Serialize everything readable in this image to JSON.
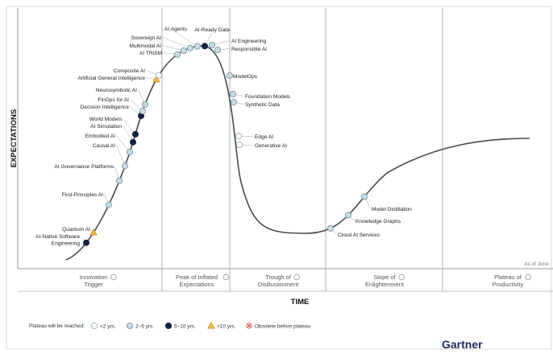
{
  "chart_data": {
    "type": "line",
    "title": "",
    "xlabel": "TIME",
    "ylabel": "EXPECTATIONS",
    "as_of": "As of June",
    "brand": "Gartner",
    "phases": [
      {
        "label_lines": [
          "Innovation",
          "Trigger"
        ]
      },
      {
        "label_lines": [
          "Peak of Inflated",
          "Expectations"
        ]
      },
      {
        "label_lines": [
          "Trough of",
          "Disillusionment"
        ]
      },
      {
        "label_lines": [
          "Slope of",
          "Enlightenment"
        ]
      },
      {
        "label_lines": [
          "Plateau of",
          "Productivity"
        ]
      }
    ],
    "legend": {
      "title": "Plateau will be reached:",
      "items": [
        {
          "label": "<2 yrs.",
          "marker": "<2"
        },
        {
          "label": "2–5 yrs.",
          "marker": "2-5"
        },
        {
          "label": "5–10 yrs.",
          "marker": "5-10"
        },
        {
          "label": ">10 yrs.",
          "marker": ">10"
        },
        {
          "label": "Obsolete before plateau",
          "marker": "obsolete"
        }
      ]
    },
    "markers": {
      "<2": {
        "fill": "#ffffff",
        "stroke": "#8fa6b2",
        "shape": "circle"
      },
      "2-5": {
        "fill": "#c9dbe3",
        "stroke": "#6f8f9c",
        "shape": "circle"
      },
      "5-10": {
        "fill": "#14233f",
        "stroke": "#14233f",
        "shape": "circle"
      },
      ">10": {
        "fill": "#f2b84b",
        "stroke": "#c4861f",
        "shape": "triangle"
      },
      "obsolete": {
        "fill": "#e05a4f",
        "stroke": "#b03a30",
        "shape": "x"
      }
    },
    "curve_color": "#4a4a4a",
    "points": [
      {
        "name": "Quantum AI",
        "cat": ">10",
        "lines": [
          "Quantum AI"
        ],
        "side": "left"
      },
      {
        "name": "AI-Native Software Engineering",
        "cat": "5-10",
        "lines": [
          "AI-Native Software",
          "Engineering"
        ],
        "side": "left"
      },
      {
        "name": "First-Principles AI",
        "cat": "2-5",
        "lines": [
          "First-Principles AI"
        ],
        "side": "left"
      },
      {
        "name": "AI Governance Platforms",
        "cat": "2-5",
        "lines": [
          "AI Governance Platforms"
        ],
        "side": "left"
      },
      {
        "name": "Causal AI",
        "cat": "2-5",
        "lines": [
          "Causal AI"
        ],
        "side": "left"
      },
      {
        "name": "Embodied AI",
        "cat": "2-5",
        "lines": [
          "Embodied AI"
        ],
        "side": "left"
      },
      {
        "name": "AI Simulation",
        "cat": "5-10",
        "lines": [
          "AI Simulation"
        ],
        "side": "left"
      },
      {
        "name": "World Models",
        "cat": "5-10",
        "lines": [
          "World Models"
        ],
        "side": "left"
      },
      {
        "name": "Decision Intelligence",
        "cat": "5-10",
        "lines": [
          "Decision Intelligence"
        ],
        "side": "left"
      },
      {
        "name": "FinOps for AI",
        "cat": "2-5",
        "lines": [
          "FinOps for AI"
        ],
        "side": "left"
      },
      {
        "name": "Neurosymbolic AI",
        "cat": "2-5",
        "lines": [
          "Neurosymbolic AI"
        ],
        "side": "left"
      },
      {
        "name": "Artificial General Intelligence",
        "cat": ">10",
        "lines": [
          "Artificial General Intelligence"
        ],
        "side": "left"
      },
      {
        "name": "Composite AI",
        "cat": "<2",
        "lines": [
          "Composite AI"
        ],
        "side": "left"
      },
      {
        "name": "AI TRiSM",
        "cat": "2-5",
        "lines": [
          "AI TRiSM"
        ],
        "side": "left"
      },
      {
        "name": "Multimodal AI",
        "cat": "2-5",
        "lines": [
          "Multimodal AI"
        ],
        "side": "left"
      },
      {
        "name": "Sovereign AI",
        "cat": "2-5",
        "lines": [
          "Sovereign AI"
        ],
        "side": "left"
      },
      {
        "name": "AI Agents",
        "cat": "2-5",
        "lines": [
          "AI Agents"
        ],
        "side": "top"
      },
      {
        "name": "AI-Ready Data",
        "cat": "5-10",
        "lines": [
          "AI-Ready Data"
        ],
        "side": "top"
      },
      {
        "name": "AI Engineering",
        "cat": "2-5",
        "lines": [
          "AI Engineering"
        ],
        "side": "right"
      },
      {
        "name": "Responsible AI",
        "cat": "2-5",
        "lines": [
          "Responsible AI"
        ],
        "side": "right"
      },
      {
        "name": "ModelOps",
        "cat": "2-5",
        "lines": [
          "ModelOps"
        ],
        "side": "right"
      },
      {
        "name": "Foundation Models",
        "cat": "2-5",
        "lines": [
          "Foundation Models"
        ],
        "side": "right"
      },
      {
        "name": "Synthetic Data",
        "cat": "2-5",
        "lines": [
          "Synthetic Data"
        ],
        "side": "right"
      },
      {
        "name": "Edge AI",
        "cat": "<2",
        "lines": [
          "Edge AI"
        ],
        "side": "right"
      },
      {
        "name": "Generative AI",
        "cat": "<2",
        "lines": [
          "Generative AI"
        ],
        "side": "right"
      },
      {
        "name": "Cloud AI Services",
        "cat": "2-5",
        "lines": [
          "Cloud AI Services"
        ],
        "side": "right"
      },
      {
        "name": "Knowledge Graphs",
        "cat": "2-5",
        "lines": [
          "Knowledge Graphs"
        ],
        "side": "right"
      },
      {
        "name": "Model Distillation",
        "cat": "2-5",
        "lines": [
          "Model Distillation"
        ],
        "side": "right"
      }
    ]
  }
}
